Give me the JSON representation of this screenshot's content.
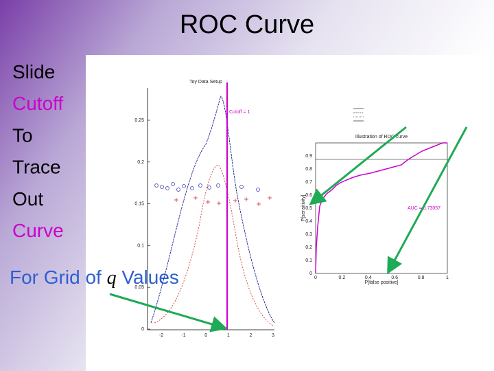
{
  "slide": {
    "title": "ROC Curve",
    "bullets": [
      {
        "text": "Slide",
        "color": "#000000"
      },
      {
        "text": "Cutoff",
        "color": "#cc00cc"
      },
      {
        "text": "To",
        "color": "#000000"
      },
      {
        "text": "Trace",
        "color": "#000000"
      },
      {
        "text": "Out",
        "color": "#000000"
      },
      {
        "text": "Curve",
        "color": "#cc00cc"
      }
    ],
    "footer": {
      "before": "For Grid of",
      "symbol": "q",
      "after": "Values"
    },
    "left_plot": {
      "title": "Toy Data Setup",
      "cutoff_label": "Cutoff = 1",
      "yticks": [
        "0",
        "0.05",
        "0.1",
        "0.15",
        "0.2",
        "0.25"
      ],
      "xticks": [
        "-2",
        "-1",
        "0",
        "1",
        "2",
        "3"
      ]
    },
    "roc_plot": {
      "title": "Illustration of ROC curve",
      "auc_label": "AUC = 0.73057",
      "ylabel": "P[sensitivity]",
      "xlabel": "P[false positive]",
      "yticks": [
        "0",
        "0.1",
        "0.2",
        "0.3",
        "0.4",
        "0.5",
        "0.6",
        "0.7",
        "0.8",
        "0.9"
      ],
      "xticks": [
        "0",
        "0.2",
        "0.4",
        "0.6",
        "0.8",
        "1"
      ]
    }
  }
}
